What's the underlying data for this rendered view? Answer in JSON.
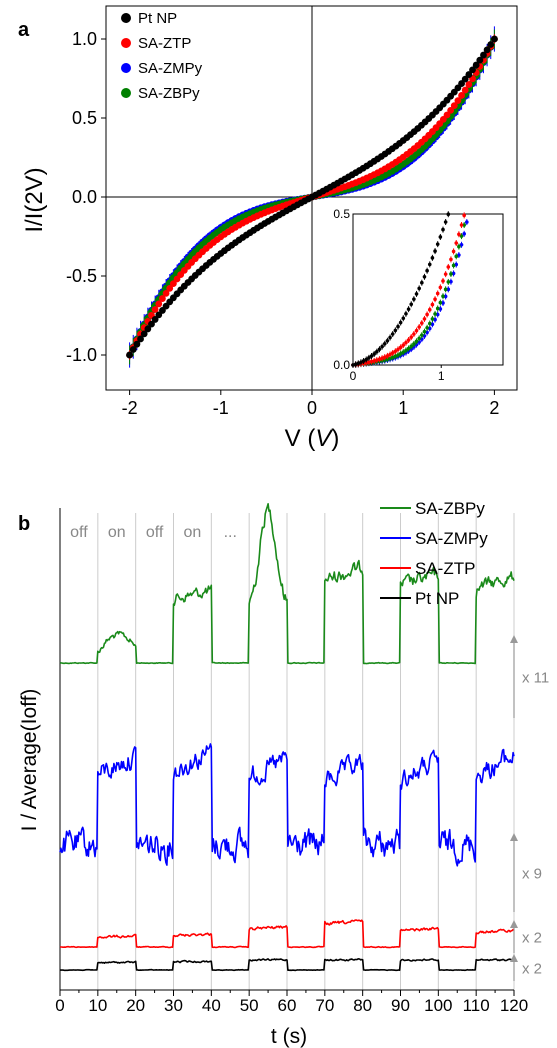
{
  "panels": {
    "a": "a",
    "b": "b"
  },
  "chart_data": [
    {
      "type": "scatter",
      "panel_label": "a",
      "xlabel_main": "V (",
      "xlabel_unit": "V",
      "xlabel_close": ")",
      "ylabel": "I/I(2V)",
      "xlim": [
        -2.2,
        2.2
      ],
      "ylim": [
        -1.17,
        1.12
      ],
      "xticks": [
        "-2",
        "-1",
        "0",
        "1",
        "2"
      ],
      "yticks": [
        "1.0",
        "0.5",
        "0.0",
        "-0.5",
        "-1.0"
      ],
      "grid": false,
      "legend_position": "top-left",
      "series": [
        {
          "name": "Pt NP",
          "color": "#000000",
          "shape": "cubic",
          "a": 0.62,
          "err_low": 0.01,
          "err_high": 0.02
        },
        {
          "name": "SA-ZTP",
          "color": "#ff0000",
          "shape": "cubic",
          "a": 0.34,
          "err_low": 0.01,
          "err_high": 0.03
        },
        {
          "name": "SA-ZMPy",
          "color": "#0000ff",
          "shape": "cubic",
          "a": 0.18,
          "err_low": 0.02,
          "err_high": 0.08
        },
        {
          "name": "SA-ZBPy",
          "color": "#008000",
          "shape": "cubic",
          "a": 0.22,
          "err_low": 0.02,
          "err_high": 0.06
        }
      ],
      "inset": {
        "xlim": [
          0,
          1.7
        ],
        "ylim": [
          0,
          0.5
        ],
        "xticks": [
          "0",
          "1"
        ],
        "yticks": [
          "0.5",
          "0.0"
        ]
      }
    },
    {
      "type": "line",
      "panel_label": "b",
      "xlabel": "t (s)",
      "ylabel": "I / Average(Ioff)",
      "xlim": [
        0,
        120
      ],
      "xticks": [
        "0",
        "10",
        "20",
        "30",
        "40",
        "50",
        "60",
        "70",
        "80",
        "90",
        "100",
        "110",
        "120"
      ],
      "grid": true,
      "grid_spacing": 10,
      "legend_position": "top-right",
      "state_labels": [
        "off",
        "on",
        "off",
        "on",
        "..."
      ],
      "series": [
        {
          "name": "SA-ZBPy",
          "color": "#1a8a1a",
          "scale_label": "x 11",
          "baseline": 663,
          "on_levels": [
            28,
            78,
            110,
            102,
            95,
            92
          ],
          "noise": 3.5,
          "slope": 0.9
        },
        {
          "name": "SA-ZMPy",
          "color": "#0000ff",
          "scale_label": "x 9",
          "baseline": 853,
          "on_levels": [
            95,
            100,
            92,
            88,
            90,
            95
          ],
          "noise": 5.5,
          "slope": 1.6
        },
        {
          "name": "SA-ZTP",
          "color": "#ff0000",
          "scale_label": "x 2",
          "baseline": 947,
          "on_levels": [
            12,
            14,
            22,
            28,
            20,
            18
          ],
          "noise": 1.8,
          "slope": 0.8
        },
        {
          "name": "Pt NP",
          "color": "#000000",
          "scale_label": "x 2",
          "baseline": 970,
          "on_levels": [
            9,
            10,
            12,
            12,
            12,
            12
          ],
          "noise": 1.2,
          "slope": 0.3
        }
      ]
    }
  ]
}
